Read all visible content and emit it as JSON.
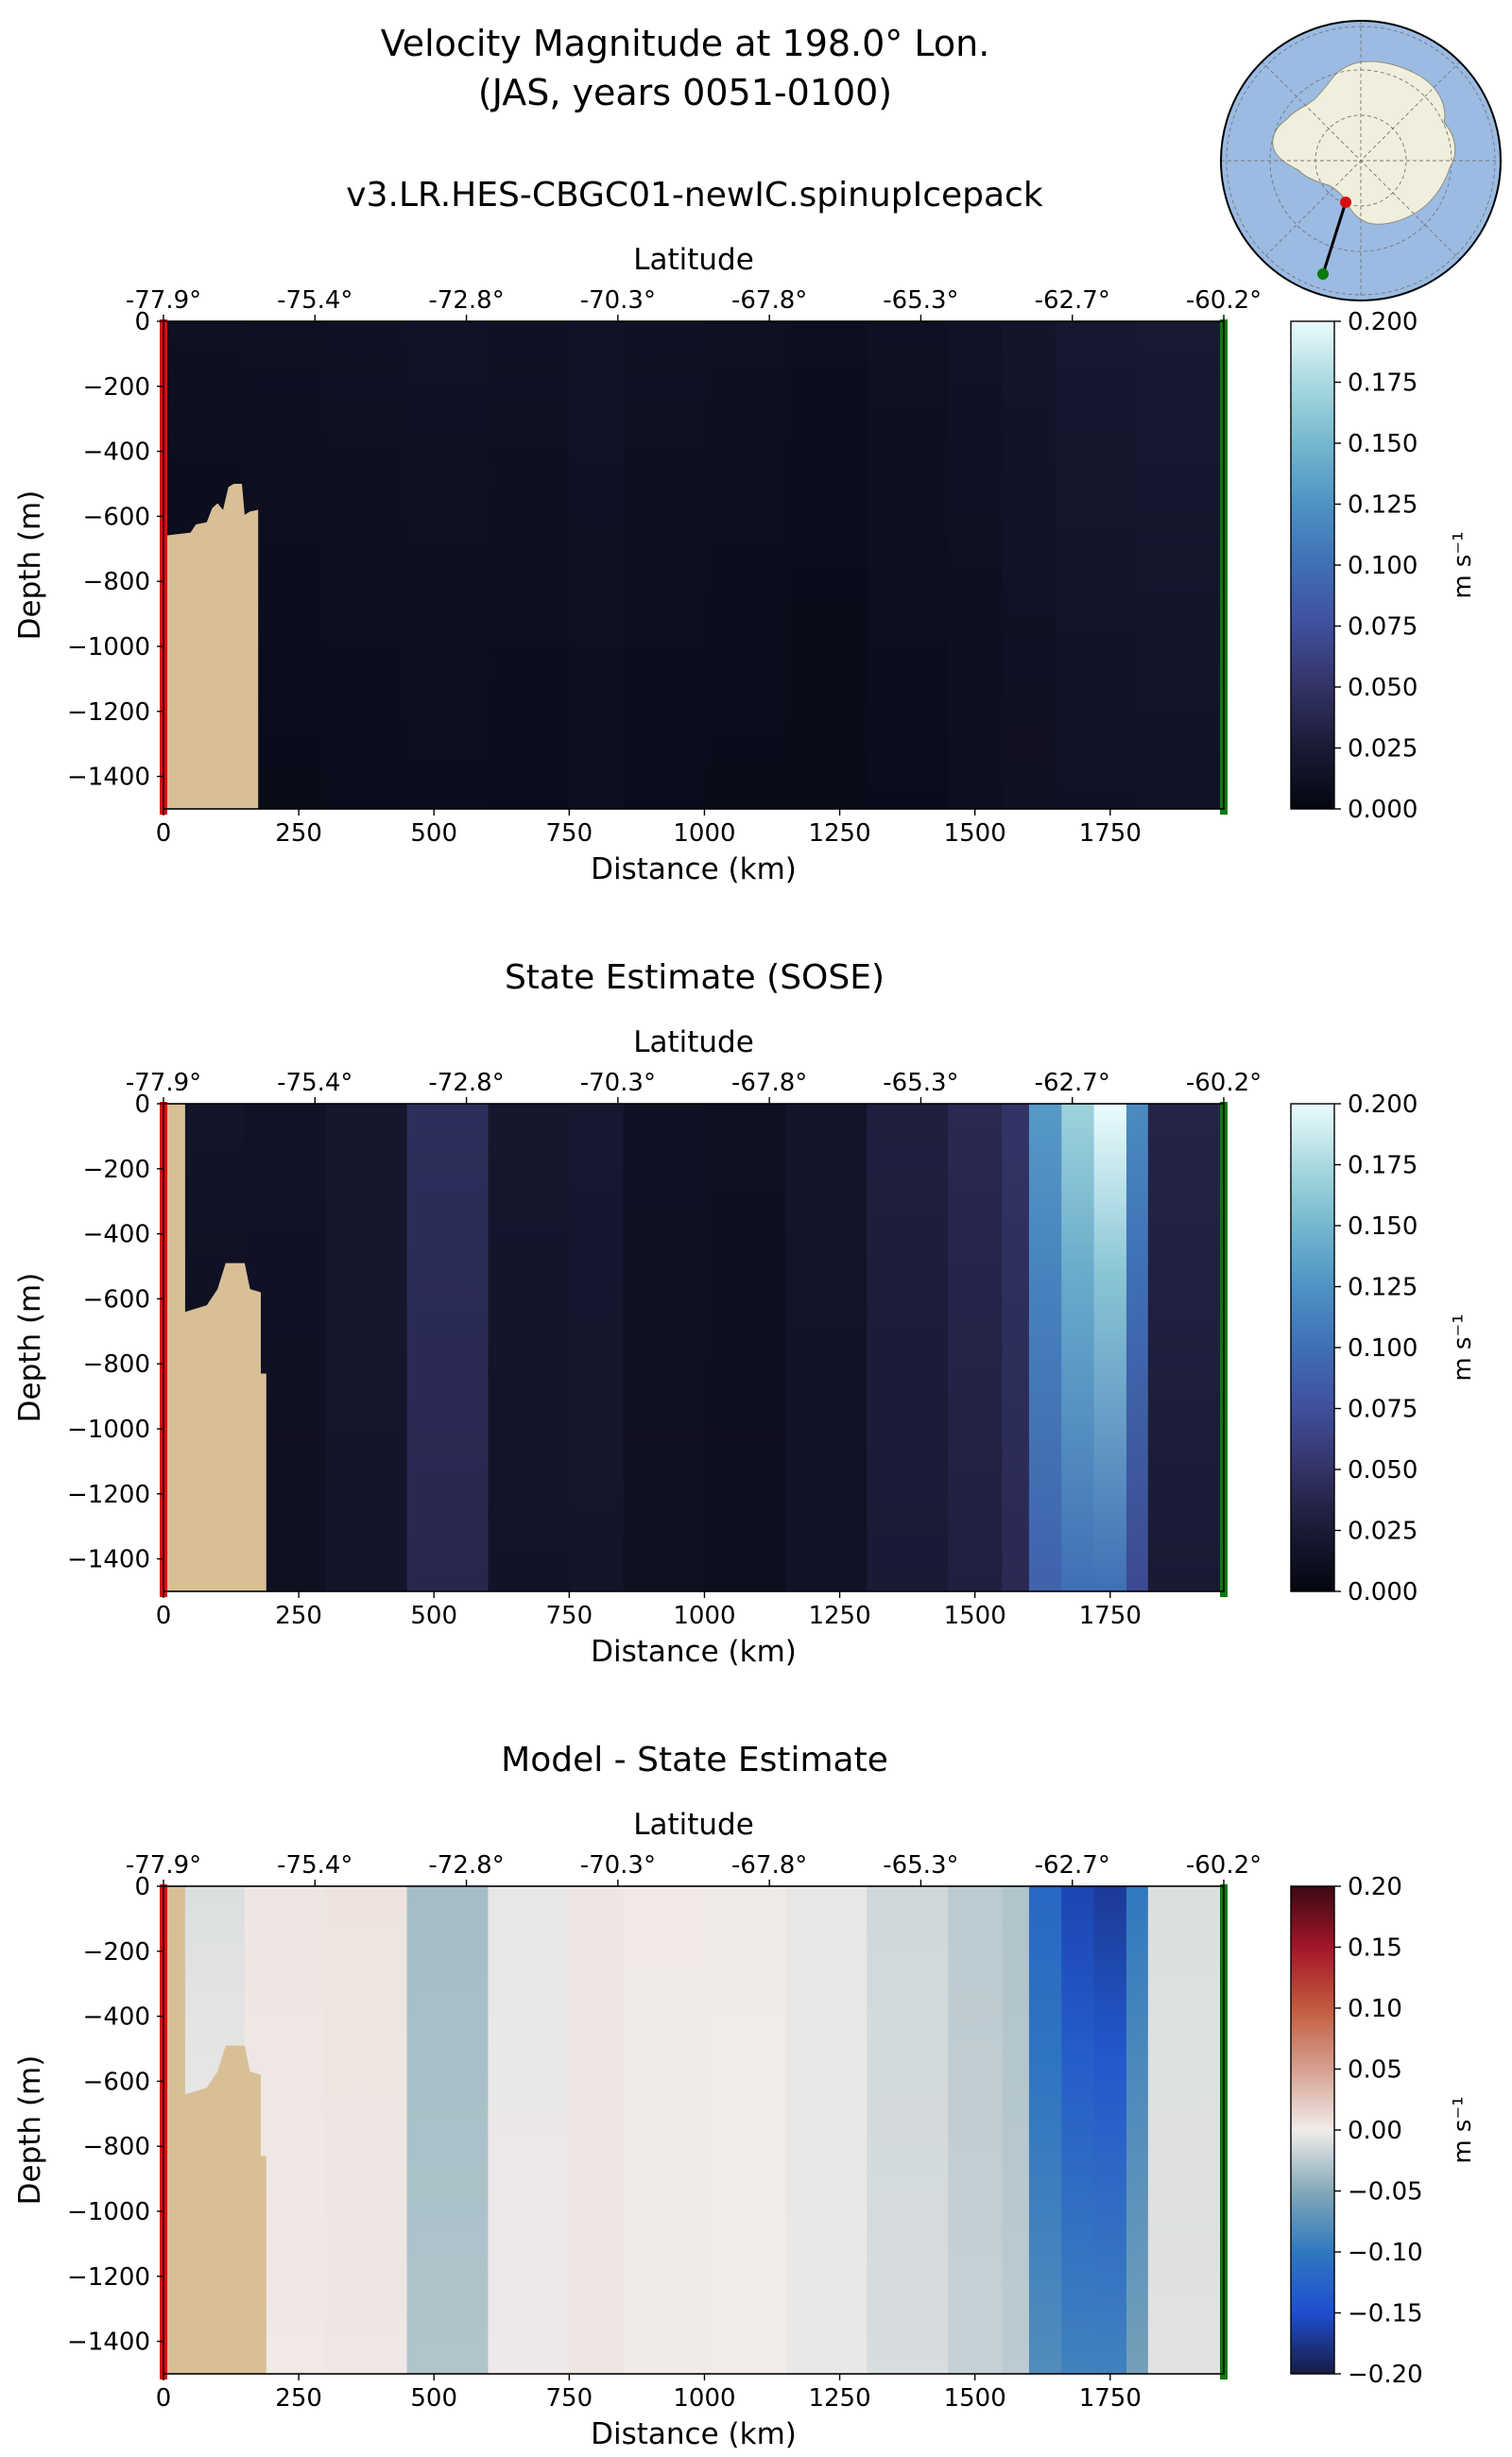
{
  "title": {
    "line1": "Velocity Magnitude at 198.0° Lon.",
    "line2": "(JAS, years 0051-0100)"
  },
  "colors": {
    "land": "#d8bf96",
    "start_marker": "#d51010",
    "end_marker": "#0a7a0a",
    "ocean_map": "#9bbbe3",
    "continent_map": "#f0eedc",
    "axes_edge": "#000000"
  },
  "chart_data": [
    {
      "type": "heatmap",
      "title": "v3.LR.HES-CBGC01-newIC.spinupIcepack",
      "xlabel": "Distance (km)",
      "ylabel": "Depth (m)",
      "top_xlabel": "Latitude",
      "xlim": [
        0,
        1960
      ],
      "ylim": [
        -1500,
        0
      ],
      "x_ticks": [
        0,
        250,
        500,
        750,
        1000,
        1250,
        1500,
        1750
      ],
      "y_ticks": [
        0,
        -200,
        -400,
        -600,
        -800,
        -1000,
        -1200,
        -1400
      ],
      "y_tick_labels": [
        "0",
        "−200",
        "−400",
        "−600",
        "−800",
        "−1000",
        "−1200",
        "−1400"
      ],
      "lat_tick_labels": [
        "-77.9°",
        "-75.4°",
        "-72.8°",
        "-70.3°",
        "-67.8°",
        "-65.3°",
        "-62.7°",
        "-60.2°"
      ],
      "colormap": "ice",
      "colorbar": {
        "label": "m s⁻¹",
        "ticks": [
          0.0,
          0.025,
          0.05,
          0.075,
          0.1,
          0.125,
          0.15,
          0.175,
          0.2
        ],
        "tick_labels": [
          "0.000",
          "0.025",
          "0.050",
          "0.075",
          "0.100",
          "0.125",
          "0.150",
          "0.175",
          "0.200"
        ],
        "range": [
          0.0,
          0.2
        ]
      },
      "bathymetry": [
        [
          0,
          -660
        ],
        [
          50,
          -650
        ],
        [
          60,
          -625
        ],
        [
          80,
          -618
        ],
        [
          90,
          -575
        ],
        [
          100,
          -560
        ],
        [
          110,
          -580
        ],
        [
          120,
          -510
        ],
        [
          130,
          -500
        ],
        [
          145,
          -500
        ],
        [
          150,
          -595
        ],
        [
          160,
          -585
        ],
        [
          175,
          -580
        ],
        [
          175,
          -1500
        ],
        [
          0,
          -1500
        ]
      ],
      "columns": [
        {
          "x0": 0,
          "x1": 150,
          "top": 0.012,
          "deep": 0.006
        },
        {
          "x0": 150,
          "x1": 300,
          "top": 0.013,
          "deep": 0.007
        },
        {
          "x0": 300,
          "x1": 450,
          "top": 0.014,
          "deep": 0.008
        },
        {
          "x0": 450,
          "x1": 600,
          "top": 0.015,
          "deep": 0.009
        },
        {
          "x0": 600,
          "x1": 750,
          "top": 0.014,
          "deep": 0.008
        },
        {
          "x0": 750,
          "x1": 850,
          "top": 0.016,
          "deep": 0.01
        },
        {
          "x0": 850,
          "x1": 1000,
          "top": 0.014,
          "deep": 0.008
        },
        {
          "x0": 1000,
          "x1": 1150,
          "top": 0.012,
          "deep": 0.007
        },
        {
          "x0": 1150,
          "x1": 1300,
          "top": 0.01,
          "deep": 0.006
        },
        {
          "x0": 1300,
          "x1": 1450,
          "top": 0.013,
          "deep": 0.008
        },
        {
          "x0": 1450,
          "x1": 1550,
          "top": 0.015,
          "deep": 0.01
        },
        {
          "x0": 1550,
          "x1": 1650,
          "top": 0.018,
          "deep": 0.012
        },
        {
          "x0": 1650,
          "x1": 1800,
          "top": 0.022,
          "deep": 0.014
        },
        {
          "x0": 1800,
          "x1": 1960,
          "top": 0.024,
          "deep": 0.015
        }
      ]
    },
    {
      "type": "heatmap",
      "title": "State Estimate (SOSE)",
      "xlabel": "Distance (km)",
      "ylabel": "Depth (m)",
      "top_xlabel": "Latitude",
      "xlim": [
        0,
        1960
      ],
      "ylim": [
        -1500,
        0
      ],
      "x_ticks": [
        0,
        250,
        500,
        750,
        1000,
        1250,
        1500,
        1750
      ],
      "y_ticks": [
        0,
        -200,
        -400,
        -600,
        -800,
        -1000,
        -1200,
        -1400
      ],
      "y_tick_labels": [
        "0",
        "−200",
        "−400",
        "−600",
        "−800",
        "−1000",
        "−1200",
        "−1400"
      ],
      "lat_tick_labels": [
        "-77.9°",
        "-75.4°",
        "-72.8°",
        "-70.3°",
        "-67.8°",
        "-65.3°",
        "-62.7°",
        "-60.2°"
      ],
      "colormap": "ice",
      "colorbar": {
        "label": "m s⁻¹",
        "ticks": [
          0.0,
          0.025,
          0.05,
          0.075,
          0.1,
          0.125,
          0.15,
          0.175,
          0.2
        ],
        "tick_labels": [
          "0.000",
          "0.025",
          "0.050",
          "0.075",
          "0.100",
          "0.125",
          "0.150",
          "0.175",
          "0.200"
        ],
        "range": [
          0.0,
          0.2
        ]
      },
      "bathymetry": [
        [
          0,
          0
        ],
        [
          40,
          0
        ],
        [
          40,
          -640
        ],
        [
          60,
          -630
        ],
        [
          80,
          -620
        ],
        [
          100,
          -570
        ],
        [
          115,
          -490
        ],
        [
          150,
          -490
        ],
        [
          160,
          -570
        ],
        [
          180,
          -580
        ],
        [
          180,
          -830
        ],
        [
          190,
          -830
        ],
        [
          190,
          -1500
        ],
        [
          0,
          -1500
        ]
      ],
      "columns": [
        {
          "x0": 0,
          "x1": 150,
          "top": 0.018,
          "deep": 0.006
        },
        {
          "x0": 150,
          "x1": 300,
          "top": 0.015,
          "deep": 0.012
        },
        {
          "x0": 300,
          "x1": 450,
          "top": 0.02,
          "deep": 0.018
        },
        {
          "x0": 450,
          "x1": 600,
          "top": 0.045,
          "deep": 0.038
        },
        {
          "x0": 600,
          "x1": 750,
          "top": 0.02,
          "deep": 0.016
        },
        {
          "x0": 750,
          "x1": 850,
          "top": 0.022,
          "deep": 0.018
        },
        {
          "x0": 850,
          "x1": 1000,
          "top": 0.014,
          "deep": 0.012
        },
        {
          "x0": 1000,
          "x1": 1150,
          "top": 0.012,
          "deep": 0.01
        },
        {
          "x0": 1150,
          "x1": 1300,
          "top": 0.018,
          "deep": 0.015
        },
        {
          "x0": 1300,
          "x1": 1450,
          "top": 0.03,
          "deep": 0.025
        },
        {
          "x0": 1450,
          "x1": 1550,
          "top": 0.04,
          "deep": 0.03
        },
        {
          "x0": 1550,
          "x1": 1600,
          "top": 0.05,
          "deep": 0.04
        },
        {
          "x0": 1600,
          "x1": 1660,
          "top": 0.13,
          "deep": 0.09
        },
        {
          "x0": 1660,
          "x1": 1720,
          "top": 0.17,
          "deep": 0.1
        },
        {
          "x0": 1720,
          "x1": 1780,
          "top": 0.2,
          "deep": 0.1
        },
        {
          "x0": 1780,
          "x1": 1820,
          "top": 0.12,
          "deep": 0.07
        },
        {
          "x0": 1820,
          "x1": 1960,
          "top": 0.035,
          "deep": 0.025
        }
      ]
    },
    {
      "type": "heatmap",
      "title": "Model - State Estimate",
      "xlabel": "Distance (km)",
      "ylabel": "Depth (m)",
      "top_xlabel": "Latitude",
      "xlim": [
        0,
        1960
      ],
      "ylim": [
        -1500,
        0
      ],
      "x_ticks": [
        0,
        250,
        500,
        750,
        1000,
        1250,
        1500,
        1750
      ],
      "y_ticks": [
        0,
        -200,
        -400,
        -600,
        -800,
        -1000,
        -1200,
        -1400
      ],
      "y_tick_labels": [
        "0",
        "−200",
        "−400",
        "−600",
        "−800",
        "−1000",
        "−1200",
        "−1400"
      ],
      "lat_tick_labels": [
        "-77.9°",
        "-75.4°",
        "-72.8°",
        "-70.3°",
        "-67.8°",
        "-65.3°",
        "-62.7°",
        "-60.2°"
      ],
      "colormap": "balance",
      "colorbar": {
        "label": "m s⁻¹",
        "ticks": [
          0.2,
          0.15,
          0.1,
          0.05,
          0.0,
          -0.05,
          -0.1,
          -0.15,
          -0.2
        ],
        "tick_labels": [
          "0.20",
          "0.15",
          "0.10",
          "0.05",
          "0.00",
          "−0.05",
          "−0.10",
          "−0.15",
          "−0.20"
        ],
        "range": [
          -0.2,
          0.2
        ]
      },
      "bathymetry": [
        [
          0,
          0
        ],
        [
          40,
          0
        ],
        [
          40,
          -640
        ],
        [
          60,
          -630
        ],
        [
          80,
          -620
        ],
        [
          100,
          -570
        ],
        [
          115,
          -490
        ],
        [
          150,
          -490
        ],
        [
          160,
          -570
        ],
        [
          180,
          -580
        ],
        [
          180,
          -830
        ],
        [
          190,
          -830
        ],
        [
          190,
          -1500
        ],
        [
          0,
          -1500
        ]
      ],
      "columns": [
        {
          "x0": 0,
          "x1": 150,
          "top": -0.01,
          "deep": 0.002
        },
        {
          "x0": 150,
          "x1": 300,
          "top": 0.004,
          "deep": 0.002
        },
        {
          "x0": 300,
          "x1": 450,
          "top": 0.006,
          "deep": 0.003
        },
        {
          "x0": 450,
          "x1": 600,
          "top": -0.035,
          "deep": -0.03
        },
        {
          "x0": 600,
          "x1": 750,
          "top": -0.004,
          "deep": -0.002
        },
        {
          "x0": 750,
          "x1": 850,
          "top": 0.004,
          "deep": 0.004
        },
        {
          "x0": 850,
          "x1": 1000,
          "top": 0.002,
          "deep": 0.001
        },
        {
          "x0": 1000,
          "x1": 1150,
          "top": 0.001,
          "deep": 0.0
        },
        {
          "x0": 1150,
          "x1": 1300,
          "top": -0.004,
          "deep": -0.003
        },
        {
          "x0": 1300,
          "x1": 1450,
          "top": -0.015,
          "deep": -0.012
        },
        {
          "x0": 1450,
          "x1": 1550,
          "top": -0.025,
          "deep": -0.02
        },
        {
          "x0": 1550,
          "x1": 1600,
          "top": -0.03,
          "deep": -0.025
        },
        {
          "x0": 1600,
          "x1": 1660,
          "top": -0.12,
          "deep": -0.08
        },
        {
          "x0": 1660,
          "x1": 1720,
          "top": -0.16,
          "deep": -0.09
        },
        {
          "x0": 1720,
          "x1": 1780,
          "top": -0.17,
          "deep": -0.09
        },
        {
          "x0": 1780,
          "x1": 1820,
          "top": -0.1,
          "deep": -0.06
        },
        {
          "x0": 1820,
          "x1": 1960,
          "top": -0.01,
          "deep": -0.008
        }
      ]
    }
  ]
}
